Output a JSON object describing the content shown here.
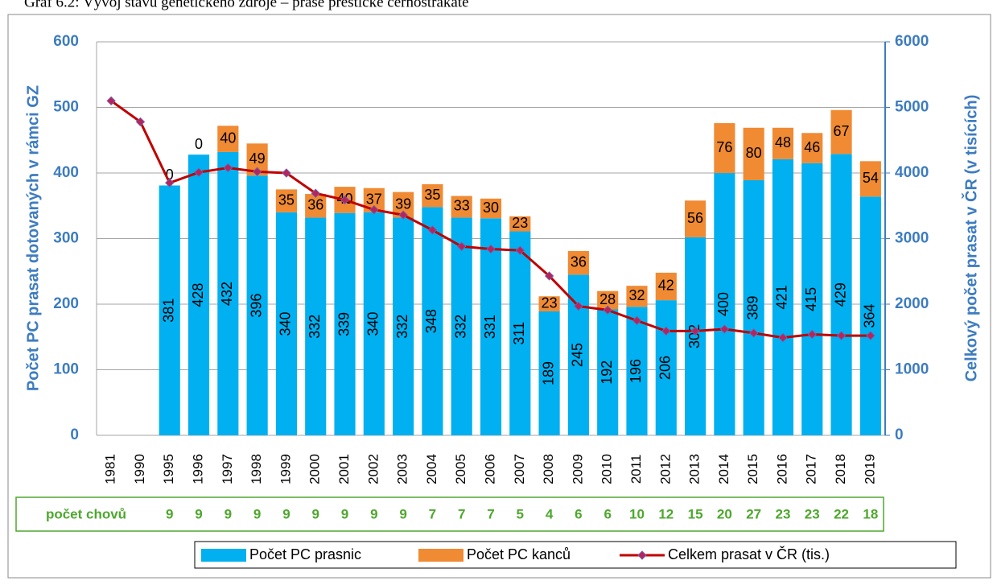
{
  "chart_data": {
    "type": "bar",
    "stacked": true,
    "title": "Graf 6.2: Vývoj stavu genetického zdroje – prase přeštické černostrakaté",
    "y_label": "Počet PC prasat dotovaných v rámci GZ",
    "y2_label": "Celkový počet prasat v ČR (v tisících)",
    "categories": [
      "1981",
      "1990",
      "1995",
      "1996",
      "1997",
      "1998",
      "1999",
      "2000",
      "2001",
      "2002",
      "2003",
      "2004",
      "2005",
      "2006",
      "2007",
      "2008",
      "2009",
      "2010",
      "2011",
      "2012",
      "2013",
      "2014",
      "2015",
      "2016",
      "2017",
      "2018",
      "2019"
    ],
    "series": [
      {
        "name": "Počet PC prasnic",
        "type": "bar",
        "color": "#00b0f0",
        "values": [
          null,
          null,
          381,
          428,
          432,
          396,
          340,
          332,
          339,
          340,
          332,
          348,
          332,
          331,
          311,
          189,
          245,
          192,
          196,
          206,
          302,
          400,
          389,
          421,
          415,
          429,
          364
        ]
      },
      {
        "name": "Počet PC kanců",
        "type": "bar",
        "color": "#f08a33",
        "values": [
          null,
          null,
          0,
          0,
          40,
          49,
          35,
          36,
          40,
          37,
          39,
          35,
          33,
          30,
          23,
          23,
          36,
          28,
          32,
          42,
          56,
          76,
          80,
          48,
          46,
          67,
          54
        ]
      },
      {
        "name": "Celkem prasat v ČR (tis.)",
        "type": "line",
        "axis": "y2",
        "color": "#c00000",
        "values": [
          5100,
          4780,
          3850,
          4010,
          4080,
          4020,
          4000,
          3690,
          3590,
          3440,
          3360,
          3130,
          2880,
          2840,
          2820,
          2430,
          1970,
          1910,
          1750,
          1590,
          1590,
          1620,
          1560,
          1490,
          1540,
          1520,
          1520
        ]
      }
    ],
    "ylim": [
      0,
      600
    ],
    "yticks": [
      0,
      100,
      200,
      300,
      400,
      500,
      600
    ],
    "y2lim": [
      0,
      6000
    ],
    "y2ticks": [
      0,
      1000,
      2000,
      3000,
      4000,
      5000,
      6000
    ],
    "grid": true,
    "legend": "bottom",
    "herds": {
      "label": "počet chovů",
      "values": [
        null,
        null,
        9,
        9,
        9,
        9,
        9,
        9,
        9,
        9,
        9,
        7,
        7,
        7,
        5,
        4,
        6,
        6,
        10,
        12,
        15,
        20,
        27,
        23,
        23,
        22,
        18
      ]
    }
  }
}
